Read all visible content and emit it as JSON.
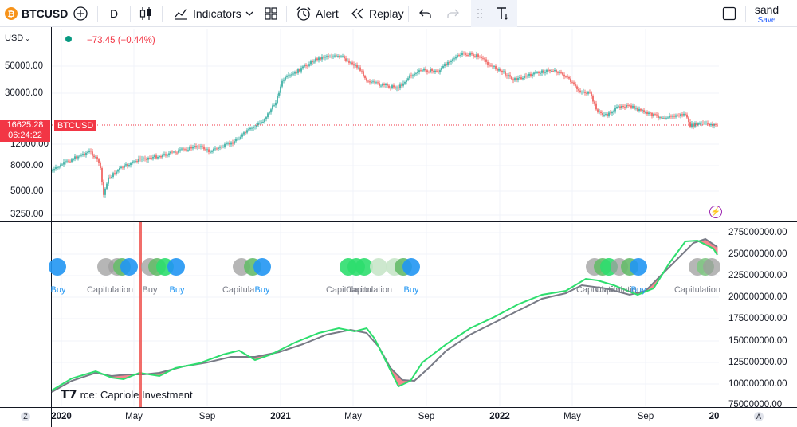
{
  "toolbar": {
    "coin_glyph": "₿",
    "symbol": "BTCUSD",
    "add_symbol_icon": "plus-circle-icon",
    "interval": "D",
    "chart_type_icon": "candles-icon",
    "indicators_label": "Indicators",
    "layouts_icon": "grid-icon",
    "alert_label": "Alert",
    "replay_label": "Replay",
    "undo_icon": "undo-icon",
    "redo_icon": "redo-icon",
    "text_tool_icon": "text-tool-icon",
    "user_name": "sand",
    "save_label": "Save"
  },
  "chart": {
    "currency": "USD",
    "change_text": "−73.45 (−0.44%)",
    "last_price": "16625.28",
    "countdown": "06:24:22",
    "symbol_tag": "BTCUSD",
    "price_axis": [
      "50000.00",
      "30000.00",
      "12000.00",
      "8000.00",
      "5000.00",
      "3250.00"
    ],
    "indicator_axis": [
      "275000000.00",
      "250000000.00",
      "225000000.00",
      "200000000.00",
      "175000000.00",
      "150000000.00",
      "125000000.00",
      "100000000.00",
      "75000000.00"
    ],
    "time_axis": [
      {
        "label": "2020",
        "bold": true
      },
      {
        "label": "May",
        "bold": false
      },
      {
        "label": "Sep",
        "bold": false
      },
      {
        "label": "2021",
        "bold": true
      },
      {
        "label": "May",
        "bold": false
      },
      {
        "label": "Sep",
        "bold": false
      },
      {
        "label": "2022",
        "bold": true
      },
      {
        "label": "May",
        "bold": false
      },
      {
        "label": "Sep",
        "bold": false
      },
      {
        "label": "20",
        "bold": true
      }
    ],
    "zoom_left": "Z",
    "auto_scale": "A",
    "source_text": "rce: Capriole Investment",
    "signal_labels": [
      {
        "text": "Buy",
        "kind": "buy"
      },
      {
        "text": "Capitulation",
        "kind": "cap"
      },
      {
        "text": "Buy",
        "kind": "buy"
      },
      {
        "text": "Capitulation",
        "kind": "cap"
      },
      {
        "text": "Buy",
        "kind": "buy"
      },
      {
        "text": "Capitulation",
        "kind": "cap"
      },
      {
        "text": "Capitulation",
        "kind": "cap"
      },
      {
        "text": "Capitulation",
        "kind": "cap"
      },
      {
        "text": "Buy",
        "kind": "buy"
      },
      {
        "text": "Capitulation",
        "kind": "cap"
      },
      {
        "text": "Capitulation",
        "kind": "cap"
      },
      {
        "text": "Buy",
        "kind": "buy"
      },
      {
        "text": "Capitulation",
        "kind": "cap"
      },
      {
        "text": "Capitulation",
        "kind": "cap"
      },
      {
        "text": "Capitulation",
        "kind": "cap"
      }
    ],
    "colors": {
      "up": "#26a69a",
      "down": "#ef5350",
      "fast": "#2ede6e",
      "slow": "#787b86",
      "buy": "#2196f3",
      "cap": "#9e9e9e",
      "fill_down": "#f23645"
    }
  }
}
